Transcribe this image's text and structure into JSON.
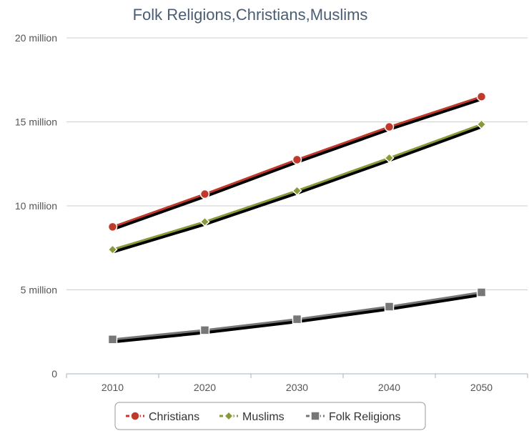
{
  "chart_data": {
    "type": "line",
    "title": "Folk Religions,Christians,Muslims",
    "xlabel": "",
    "ylabel": "",
    "categories": [
      "2010",
      "2020",
      "2030",
      "2040",
      "2050"
    ],
    "y_ticks": [
      "0",
      "5 million",
      "10 million",
      "15 million",
      "20 million"
    ],
    "ylim": [
      0,
      20000000
    ],
    "grid": true,
    "legend_position": "bottom",
    "series": [
      {
        "name": "Christians",
        "color": "#c0392b",
        "marker": "circle",
        "values": [
          8750000,
          10700000,
          12750000,
          14700000,
          16500000
        ]
      },
      {
        "name": "Muslims",
        "color": "#8a9a3b",
        "marker": "diamond",
        "values": [
          7400000,
          9050000,
          10900000,
          12850000,
          14850000
        ]
      },
      {
        "name": "Folk Religions",
        "color": "#777777",
        "marker": "square",
        "values": [
          2050000,
          2600000,
          3250000,
          4000000,
          4850000
        ]
      }
    ]
  }
}
